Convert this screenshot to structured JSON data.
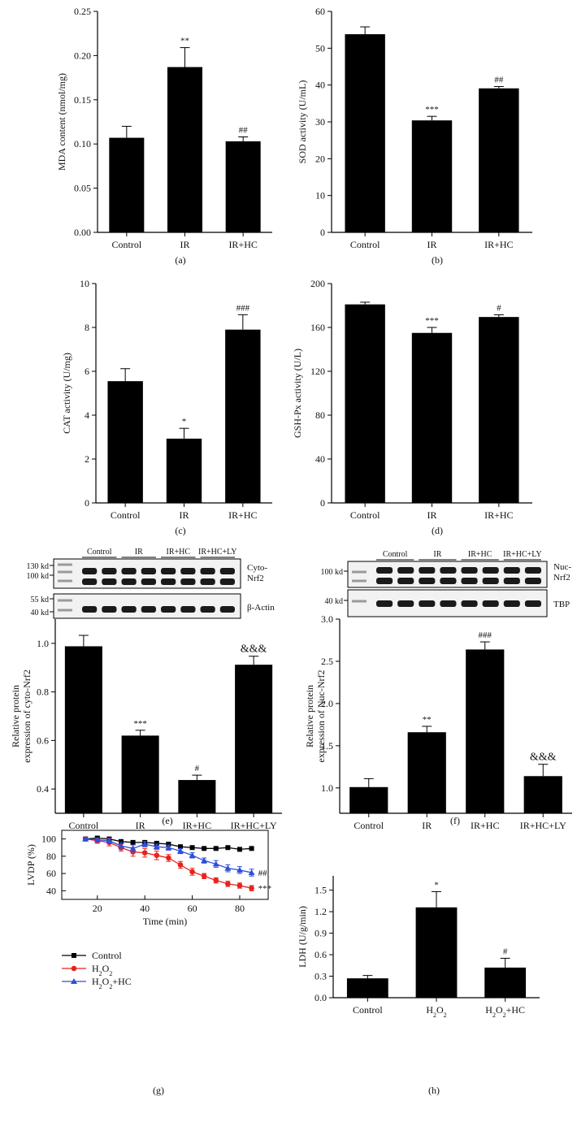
{
  "chart_data": [
    {
      "id": "a",
      "type": "bar",
      "categories": [
        "Control",
        "IR",
        "IR+HC"
      ],
      "values": [
        0.107,
        0.187,
        0.103
      ],
      "errors": [
        0.013,
        0.022,
        0.005
      ],
      "annotations": [
        "",
        "**",
        "##"
      ],
      "ylabel": "MDA content (nmol/mg)",
      "ylim": [
        0,
        0.25
      ],
      "yticks": [
        0.0,
        0.05,
        0.1,
        0.15,
        0.2,
        0.25
      ],
      "ytick_labels": [
        "0.00",
        "0.05",
        "0.10",
        "0.15",
        "0.20",
        "0.25"
      ],
      "panel_label": "(a)"
    },
    {
      "id": "b",
      "type": "bar",
      "categories": [
        "Control",
        "IR",
        "IR+HC"
      ],
      "values": [
        53.8,
        30.4,
        39.1
      ],
      "errors": [
        2.0,
        1.1,
        0.5
      ],
      "annotations": [
        "",
        "***",
        "##"
      ],
      "ylabel": "SOD activity (U/mL)",
      "ylim": [
        0,
        60
      ],
      "yticks": [
        0,
        10,
        20,
        30,
        40,
        50,
        60
      ],
      "ytick_labels": [
        "0",
        "10",
        "20",
        "30",
        "40",
        "50",
        "60"
      ],
      "panel_label": "(b)"
    },
    {
      "id": "c",
      "type": "bar",
      "categories": [
        "Control",
        "IR",
        "IR+HC"
      ],
      "values": [
        5.55,
        2.93,
        7.9
      ],
      "errors": [
        0.57,
        0.47,
        0.68
      ],
      "annotations": [
        "",
        "*",
        "###"
      ],
      "ylabel": "CAT activity (U/mg)",
      "ylim": [
        0,
        10
      ],
      "yticks": [
        0,
        2,
        4,
        6,
        8,
        10
      ],
      "ytick_labels": [
        "0",
        "2",
        "4",
        "6",
        "8",
        "10"
      ],
      "panel_label": "(c)"
    },
    {
      "id": "d",
      "type": "bar",
      "categories": [
        "Control",
        "IR",
        "IR+HC"
      ],
      "values": [
        181,
        155,
        169.5
      ],
      "errors": [
        2,
        5,
        2
      ],
      "annotations": [
        "",
        "***",
        "#"
      ],
      "ylabel": "GSH-Px activity (U/L)",
      "ylim": [
        0,
        200
      ],
      "yticks": [
        0,
        40,
        80,
        120,
        160,
        200
      ],
      "ytick_labels": [
        "0",
        "40",
        "80",
        "120",
        "160",
        "200"
      ],
      "panel_label": "(d)"
    },
    {
      "id": "e",
      "type": "bar",
      "categories": [
        "Control",
        "IR",
        "IR+HC",
        "IR+HC+LY"
      ],
      "values": [
        0.988,
        0.62,
        0.437,
        0.912
      ],
      "errors": [
        0.045,
        0.022,
        0.02,
        0.035
      ],
      "annotations": [
        "",
        "***",
        "#",
        "&&&"
      ],
      "ylabel_lines": [
        "Relative protein",
        "expression of cyto-Nrf2"
      ],
      "ylim": [
        0.3,
        1.1
      ],
      "yticks": [
        0.4,
        0.6,
        0.8,
        1.0
      ],
      "ytick_labels": [
        "0.4",
        "0.6",
        "0.8",
        "1.0"
      ],
      "panel_label": "(e)",
      "blot": {
        "groups": [
          "Control",
          "IR",
          "IR+HC",
          "IR+HC+LY"
        ],
        "rows": [
          {
            "markers": [
              "130 kd",
              "100 kd"
            ],
            "label_lines": [
              "Cyto-",
              "Nrf2"
            ]
          },
          {
            "markers": [
              "55 kd",
              "40 kd"
            ],
            "label_lines": [
              "β-Actin"
            ]
          }
        ]
      }
    },
    {
      "id": "f",
      "type": "bar",
      "categories": [
        "Control",
        "IR",
        "IR+HC",
        "IR+HC+LY"
      ],
      "values": [
        1.01,
        1.66,
        2.64,
        1.14
      ],
      "errors": [
        0.1,
        0.07,
        0.09,
        0.14
      ],
      "annotations": [
        "",
        "**",
        "###",
        "&&&"
      ],
      "ylabel_lines": [
        "Relative protein",
        "expression of Nuc-Nrf2"
      ],
      "ylim": [
        0.7,
        3.0
      ],
      "yticks": [
        1.0,
        1.5,
        2.0,
        2.5,
        3.0
      ],
      "ytick_labels": [
        "1.0",
        "1.5",
        "2.0",
        "2.5",
        "3.0"
      ],
      "panel_label": "(f)",
      "blot": {
        "groups": [
          "Control",
          "IR",
          "IR+HC",
          "IR+HC+LY"
        ],
        "rows": [
          {
            "markers": [
              "100 kd"
            ],
            "label_lines": [
              "Nuc-",
              "Nrf2"
            ]
          },
          {
            "markers": [
              "40 kd"
            ],
            "label_lines": [
              "TBP"
            ]
          }
        ]
      }
    },
    {
      "id": "g",
      "type": "line",
      "x": [
        15,
        20,
        25,
        30,
        35,
        40,
        45,
        50,
        55,
        60,
        65,
        70,
        75,
        80,
        85
      ],
      "series": [
        {
          "name": "Control",
          "color": "#000000",
          "marker": "square",
          "values": [
            100,
            101,
            100,
            97,
            96,
            96,
            95,
            94,
            91,
            90,
            89,
            89,
            90,
            88,
            89
          ],
          "errors": [
            1,
            2,
            2,
            2,
            2,
            2,
            2,
            2,
            2,
            2,
            1,
            1,
            1,
            1,
            1
          ]
        },
        {
          "name": "H₂O₂",
          "color": "#e8231e",
          "marker": "circle",
          "values": [
            100,
            98,
            96,
            90,
            85,
            84,
            81,
            78,
            70,
            62,
            57,
            52,
            48,
            46,
            43
          ],
          "errors": [
            1,
            3,
            4,
            4,
            5,
            5,
            5,
            4,
            4,
            4,
            3,
            3,
            3,
            3,
            3
          ]
        },
        {
          "name": "H₂O₂+HC",
          "color": "#2d4fd8",
          "marker": "triangle",
          "values": [
            100,
            99,
            98,
            92,
            89,
            94,
            91,
            90,
            86,
            81,
            75,
            71,
            66,
            64,
            61
          ],
          "errors": [
            1,
            2,
            3,
            4,
            4,
            3,
            3,
            3,
            3,
            3,
            3,
            4,
            4,
            4,
            4
          ]
        }
      ],
      "end_annotations": [
        "",
        "***",
        "##"
      ],
      "xlabel": "Time (min)",
      "ylabel": "LVDP (%)",
      "xlim": [
        5,
        92
      ],
      "ylim": [
        30,
        110
      ],
      "xticks": [
        20,
        40,
        60,
        80
      ],
      "yticks": [
        40,
        60,
        80,
        100
      ],
      "panel_label": "(g)"
    },
    {
      "id": "h",
      "type": "bar",
      "categories": [
        "Control",
        "H₂O₂",
        "H₂O₂+HC"
      ],
      "values": [
        0.27,
        1.26,
        0.42
      ],
      "errors": [
        0.04,
        0.22,
        0.13
      ],
      "annotations": [
        "",
        "*",
        "#"
      ],
      "ylabel": "LDH (U/g/min)",
      "ylim": [
        0,
        1.7
      ],
      "yticks": [
        0.0,
        0.3,
        0.6,
        0.9,
        1.2,
        1.5
      ],
      "ytick_labels": [
        "0.0",
        "0.3",
        "0.6",
        "0.9",
        "1.2",
        "1.5"
      ],
      "panel_label": "(h)"
    }
  ]
}
